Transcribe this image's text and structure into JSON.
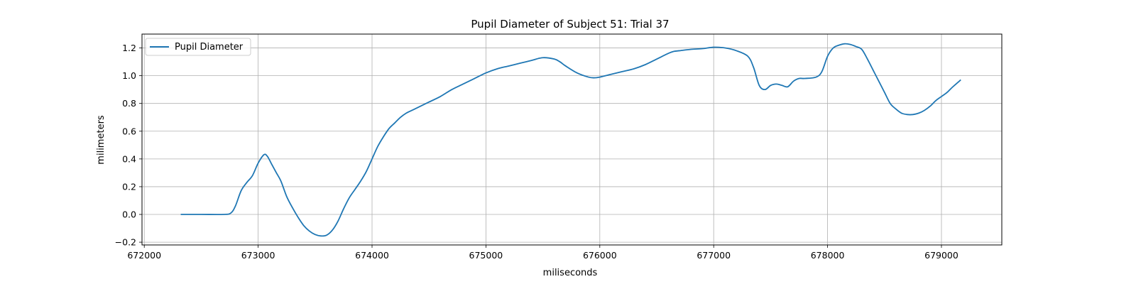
{
  "chart_data": {
    "type": "line",
    "title": "Pupil Diameter of Subject 51: Trial 37",
    "xlabel": "miliseconds",
    "ylabel": "milimeters",
    "xlim": [
      671980,
      679530
    ],
    "ylim": [
      -0.22,
      1.3
    ],
    "xticks": [
      672000,
      673000,
      674000,
      675000,
      676000,
      677000,
      678000,
      679000
    ],
    "xtick_labels": [
      "672000",
      "673000",
      "674000",
      "675000",
      "676000",
      "677000",
      "678000",
      "679000"
    ],
    "yticks": [
      -0.2,
      0.0,
      0.2,
      0.4,
      0.6,
      0.8,
      1.0,
      1.2
    ],
    "ytick_labels": [
      "−0.2",
      "0.0",
      "0.2",
      "0.4",
      "0.6",
      "0.8",
      "1.0",
      "1.2"
    ],
    "grid": true,
    "legend_position": "top-left",
    "colors": {
      "series": "#1f77b4"
    },
    "series": [
      {
        "name": "Pupil Diameter",
        "x": [
          672320,
          672500,
          672700,
          672760,
          672800,
          672850,
          672900,
          672950,
          673000,
          673050,
          673080,
          673120,
          673160,
          673200,
          673250,
          673300,
          673350,
          673400,
          673450,
          673500,
          673550,
          673600,
          673650,
          673700,
          673750,
          673800,
          673850,
          673900,
          673950,
          674000,
          674050,
          674100,
          674150,
          674200,
          674250,
          674300,
          674350,
          674400,
          674500,
          674600,
          674700,
          674800,
          674900,
          675000,
          675100,
          675200,
          675300,
          675400,
          675500,
          675600,
          675650,
          675700,
          675800,
          675900,
          675950,
          676000,
          676100,
          676200,
          676300,
          676400,
          676500,
          676600,
          676650,
          676700,
          676800,
          676900,
          677000,
          677100,
          677200,
          677300,
          677350,
          677400,
          677450,
          677500,
          677550,
          677600,
          677650,
          677700,
          677750,
          677800,
          677900,
          677950,
          678000,
          678050,
          678100,
          678150,
          678200,
          678250,
          678300,
          678350,
          678400,
          678450,
          678500,
          678550,
          678600,
          678650,
          678700,
          678750,
          678800,
          678850,
          678900,
          678950,
          679000,
          679050,
          679100,
          679170
        ],
        "y": [
          0.0,
          0.0,
          0.0,
          0.01,
          0.06,
          0.17,
          0.23,
          0.28,
          0.37,
          0.43,
          0.42,
          0.36,
          0.3,
          0.24,
          0.13,
          0.05,
          -0.02,
          -0.08,
          -0.12,
          -0.145,
          -0.155,
          -0.15,
          -0.115,
          -0.05,
          0.04,
          0.12,
          0.18,
          0.24,
          0.31,
          0.4,
          0.49,
          0.56,
          0.62,
          0.66,
          0.7,
          0.73,
          0.75,
          0.77,
          0.81,
          0.85,
          0.9,
          0.94,
          0.98,
          1.02,
          1.05,
          1.07,
          1.09,
          1.11,
          1.13,
          1.12,
          1.1,
          1.07,
          1.02,
          0.99,
          0.985,
          0.99,
          1.01,
          1.03,
          1.05,
          1.08,
          1.12,
          1.16,
          1.175,
          1.18,
          1.19,
          1.195,
          1.205,
          1.2,
          1.18,
          1.14,
          1.06,
          0.93,
          0.9,
          0.93,
          0.94,
          0.93,
          0.92,
          0.96,
          0.98,
          0.98,
          0.99,
          1.03,
          1.14,
          1.2,
          1.22,
          1.23,
          1.225,
          1.21,
          1.19,
          1.12,
          1.04,
          0.96,
          0.88,
          0.8,
          0.76,
          0.73,
          0.72,
          0.72,
          0.73,
          0.75,
          0.78,
          0.82,
          0.85,
          0.88,
          0.92,
          0.97
        ]
      }
    ]
  }
}
